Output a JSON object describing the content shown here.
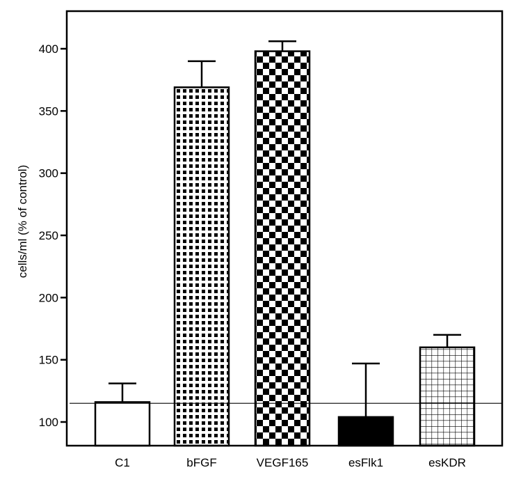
{
  "chart_data": {
    "type": "bar",
    "title": "",
    "xlabel": "",
    "ylabel": "cells/ml (% of control)",
    "ylim": [
      81,
      430
    ],
    "yticks": [
      100,
      150,
      200,
      250,
      300,
      350,
      400
    ],
    "categories": [
      "C1",
      "bFGF",
      "VEGF165",
      "esFlk1",
      "esKDR"
    ],
    "values": [
      116,
      369,
      398,
      104,
      160
    ],
    "error_upper": [
      131,
      390,
      406,
      147,
      170
    ],
    "patterns": [
      "white",
      "dots",
      "checker",
      "solid-black",
      "grid"
    ],
    "reference_line": 115,
    "grid": false,
    "legend": null
  },
  "axis": {
    "ylabel": "cells/ml (% of control)",
    "yticks": [
      "100",
      "150",
      "200",
      "250",
      "300",
      "350",
      "400"
    ]
  },
  "labels": [
    "C1",
    "bFGF",
    "VEGF165",
    "esFlk1",
    "esKDR"
  ]
}
